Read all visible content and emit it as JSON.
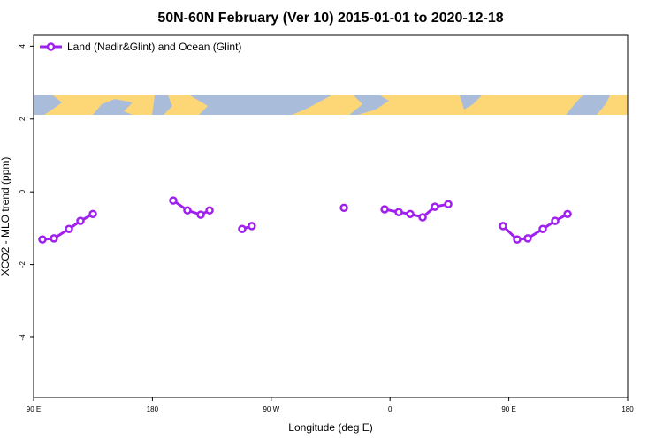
{
  "chart_data": {
    "type": "line",
    "title": "50N-60N February (Ver 10)   2015-01-01 to 2020-12-18",
    "x_label": "Longitude (deg E)",
    "y_label": "XCO2 - MLO trend (ppm)",
    "series": [
      {
        "name": "Land (Nadir&Glint) and Ocean (Glint)",
        "color": "#a020f0",
        "x": [
          96.7,
          105.4,
          116.8,
          125.5,
          134.9,
          null,
          195.8,
          206.5,
          216.6,
          223.3,
          null,
          248.0,
          255.3,
          null,
          325.1,
          null,
          355.9,
          366.6,
          375.3,
          384.7,
          394.0,
          404.1,
          null,
          445.6,
          456.3,
          464.3,
          475.7,
          485.1,
          494.5
        ],
        "values": [
          -1.31,
          -1.28,
          -1.02,
          -0.8,
          -0.61,
          null,
          -0.24,
          -0.51,
          -0.63,
          -0.51,
          null,
          -1.02,
          -0.94,
          null,
          -0.44,
          null,
          -0.48,
          -0.56,
          -0.61,
          -0.7,
          -0.41,
          -0.34,
          null,
          -0.94,
          -1.31,
          -1.28,
          -1.02,
          -0.8,
          -0.61
        ]
      }
    ],
    "xlim": [
      90,
      540
    ],
    "xticks": [
      {
        "value": 90,
        "label": "90 E"
      },
      {
        "value": 180,
        "label": "180"
      },
      {
        "value": 270,
        "label": "90 W"
      },
      {
        "value": 360,
        "label": "0"
      },
      {
        "value": 450,
        "label": "90 E"
      },
      {
        "value": 540,
        "label": "180"
      }
    ],
    "ylim": [
      -5.65,
      4.3
    ],
    "yticks": [
      4,
      2,
      0,
      -2,
      -4
    ],
    "legend": "top-left"
  }
}
